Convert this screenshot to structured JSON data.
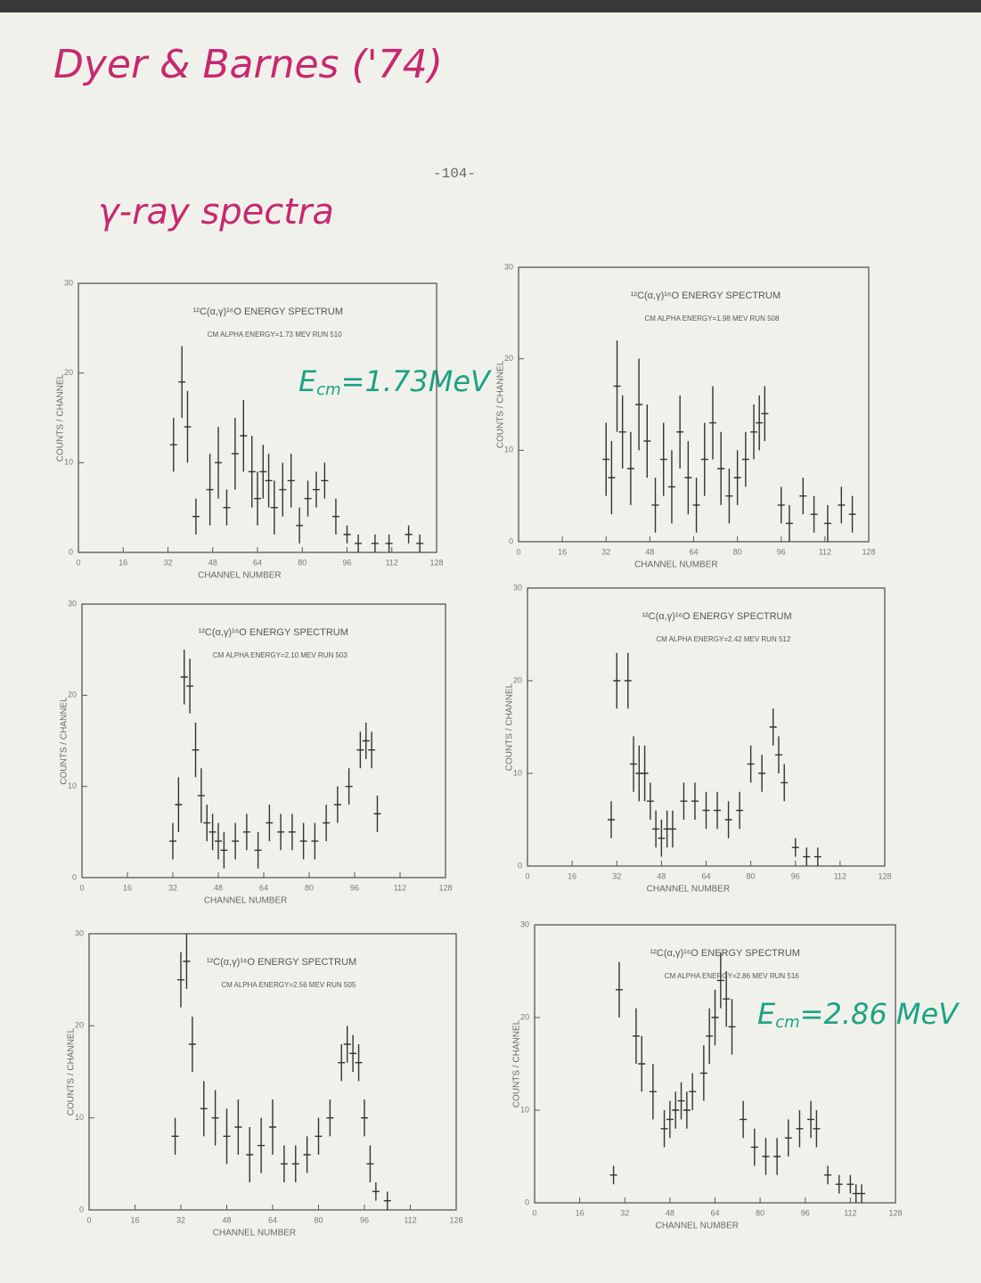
{
  "document": {
    "heading": "Dyer & Barnes ('74)",
    "page_number": "-104-",
    "subheading": "γ-ray spectra",
    "annotations": [
      {
        "symbol": "E",
        "subscript": "cm",
        "text": "=1.73MeV"
      },
      {
        "symbol": "E",
        "subscript": "cm",
        "text": "=2.86 MeV"
      }
    ]
  },
  "chart_data": [
    {
      "type": "scatter",
      "title": "¹²C(α,γ)¹⁶O   ENERGY SPECTRUM",
      "subtitle": "CM ALPHA ENERGY=1.73 MEV  RUN 510",
      "x_label": "CHANNEL NUMBER",
      "y_label": "COUNTS / CHANNEL",
      "x": [
        34,
        37,
        39,
        42,
        47,
        50,
        53,
        56,
        59,
        62,
        64,
        66,
        68,
        70,
        73,
        76,
        79,
        82,
        85,
        88,
        92,
        96,
        100,
        106,
        111,
        118,
        122
      ],
      "values": [
        12,
        19,
        14,
        4,
        7,
        10,
        5,
        11,
        13,
        9,
        6,
        9,
        8,
        5,
        7,
        8,
        3,
        6,
        7,
        8,
        4,
        2,
        1,
        1,
        1,
        2,
        1
      ],
      "errors": [
        3,
        4,
        4,
        2,
        4,
        4,
        2,
        4,
        4,
        4,
        3,
        3,
        3,
        3,
        3,
        3,
        2,
        2,
        2,
        2,
        2,
        1,
        1,
        1,
        1,
        1,
        1
      ],
      "xlim": [
        0,
        128
      ],
      "xticks": [
        0,
        16,
        32,
        48,
        64,
        80,
        96,
        112,
        128
      ],
      "ylim": [
        0,
        30
      ],
      "yticks": [
        0,
        10,
        20,
        30
      ],
      "color": "#333333"
    },
    {
      "type": "scatter",
      "title": "¹²C(α,γ)¹⁶O   ENERGY SPECTRUM",
      "subtitle": "CM ALPHA ENERGY=1.98 MEV  RUN 508",
      "x_label": "CHANNEL NUMBER",
      "y_label": "COUNTS / CHANNEL",
      "x": [
        32,
        34,
        36,
        38,
        41,
        44,
        47,
        50,
        53,
        56,
        59,
        62,
        65,
        68,
        71,
        74,
        77,
        80,
        83,
        86,
        88,
        90,
        96,
        99,
        104,
        108,
        113,
        118,
        122
      ],
      "values": [
        9,
        7,
        17,
        12,
        8,
        15,
        11,
        4,
        9,
        6,
        12,
        7,
        4,
        9,
        13,
        8,
        5,
        7,
        9,
        12,
        13,
        14,
        4,
        2,
        5,
        3,
        2,
        4,
        3
      ],
      "errors": [
        4,
        4,
        5,
        4,
        4,
        5,
        4,
        3,
        4,
        4,
        4,
        4,
        3,
        4,
        4,
        4,
        3,
        3,
        3,
        3,
        3,
        3,
        2,
        2,
        2,
        2,
        2,
        2,
        2
      ],
      "xlim": [
        0,
        128
      ],
      "xticks": [
        0,
        16,
        32,
        48,
        64,
        80,
        96,
        112,
        128
      ],
      "ylim": [
        0,
        30
      ],
      "yticks": [
        0,
        10,
        20,
        30
      ],
      "color": "#333333"
    },
    {
      "type": "scatter",
      "title": "¹²C(α,γ)¹⁶O   ENERGY SPECTRUM",
      "subtitle": "CM ALPHA ENERGY=2.10 MEV  RUN 503",
      "x_label": "CHANNEL NUMBER",
      "y_label": "COUNTS / CHANNEL",
      "x": [
        32,
        34,
        36,
        38,
        40,
        42,
        44,
        46,
        48,
        50,
        54,
        58,
        62,
        66,
        70,
        74,
        78,
        82,
        86,
        90,
        94,
        98,
        100,
        102,
        104
      ],
      "values": [
        4,
        8,
        22,
        21,
        14,
        9,
        6,
        5,
        4,
        3,
        4,
        5,
        3,
        6,
        5,
        5,
        4,
        4,
        6,
        8,
        10,
        14,
        15,
        14,
        7
      ],
      "errors": [
        2,
        3,
        3,
        3,
        3,
        3,
        2,
        2,
        2,
        2,
        2,
        2,
        2,
        2,
        2,
        2,
        2,
        2,
        2,
        2,
        2,
        2,
        2,
        2,
        2
      ],
      "xlim": [
        0,
        128
      ],
      "xticks": [
        0,
        16,
        32,
        48,
        64,
        80,
        96,
        112,
        128
      ],
      "ylim": [
        0,
        30
      ],
      "yticks": [
        0,
        10,
        20,
        30
      ],
      "color": "#333333"
    },
    {
      "type": "scatter",
      "title": "¹²C(α,γ)¹⁶O   ENERGY SPECTRUM",
      "subtitle": "CM ALPHA ENERGY=2.42 MEV  RUN 512",
      "x_label": "CHANNEL NUMBER",
      "y_label": "COUNTS / CHANNEL",
      "x": [
        30,
        32,
        36,
        38,
        40,
        42,
        44,
        46,
        48,
        50,
        52,
        56,
        60,
        64,
        68,
        72,
        76,
        80,
        84,
        88,
        90,
        92,
        96,
        100,
        104
      ],
      "values": [
        5,
        20,
        20,
        11,
        10,
        10,
        7,
        4,
        3,
        4,
        4,
        7,
        7,
        6,
        6,
        5,
        6,
        11,
        10,
        15,
        12,
        9,
        2,
        1,
        1
      ],
      "errors": [
        2,
        3,
        3,
        3,
        3,
        3,
        2,
        2,
        2,
        2,
        2,
        2,
        2,
        2,
        2,
        2,
        2,
        2,
        2,
        2,
        2,
        2,
        1,
        1,
        1
      ],
      "xlim": [
        0,
        128
      ],
      "xticks": [
        0,
        16,
        32,
        48,
        64,
        80,
        96,
        112,
        128
      ],
      "ylim": [
        0,
        30
      ],
      "yticks": [
        0,
        10,
        20,
        30
      ],
      "color": "#333333"
    },
    {
      "type": "scatter",
      "title": "¹²C(α,γ)¹⁶O   ENERGY SPECTRUM",
      "subtitle": "CM ALPHA ENERGY=2.56 MEV  RUN 505",
      "x_label": "CHANNEL NUMBER",
      "y_label": "COUNTS / CHANNEL",
      "x": [
        30,
        32,
        34,
        36,
        40,
        44,
        48,
        52,
        56,
        60,
        64,
        68,
        72,
        76,
        80,
        84,
        88,
        90,
        92,
        94,
        96,
        98,
        100,
        104
      ],
      "values": [
        8,
        25,
        27,
        18,
        11,
        10,
        8,
        9,
        6,
        7,
        9,
        5,
        5,
        6,
        8,
        10,
        16,
        18,
        17,
        16,
        10,
        5,
        2,
        1
      ],
      "errors": [
        2,
        3,
        3,
        3,
        3,
        3,
        3,
        3,
        3,
        3,
        3,
        2,
        2,
        2,
        2,
        2,
        2,
        2,
        2,
        2,
        2,
        2,
        1,
        1
      ],
      "xlim": [
        0,
        128
      ],
      "xticks": [
        0,
        16,
        32,
        48,
        64,
        80,
        96,
        112,
        128
      ],
      "ylim": [
        0,
        30
      ],
      "yticks": [
        0,
        10,
        20,
        30
      ],
      "color": "#333333"
    },
    {
      "type": "scatter",
      "title": "¹²C(α,γ)¹⁶O   ENERGY SPECTRUM",
      "subtitle": "CM ALPHA ENERGY=2.86 MEV  RUN 516",
      "x_label": "CHANNEL NUMBER",
      "y_label": "COUNTS / CHANNEL",
      "x": [
        28,
        30,
        36,
        38,
        42,
        46,
        48,
        50,
        52,
        54,
        56,
        60,
        62,
        64,
        66,
        68,
        70,
        74,
        78,
        82,
        86,
        90,
        94,
        98,
        100,
        104,
        108,
        112,
        114,
        116
      ],
      "values": [
        3,
        23,
        18,
        15,
        12,
        8,
        9,
        10,
        11,
        10,
        12,
        14,
        18,
        20,
        24,
        22,
        19,
        9,
        6,
        5,
        5,
        7,
        8,
        9,
        8,
        3,
        2,
        2,
        1,
        1
      ],
      "errors": [
        1,
        3,
        3,
        3,
        3,
        2,
        2,
        2,
        2,
        2,
        2,
        3,
        3,
        3,
        3,
        3,
        3,
        2,
        2,
        2,
        2,
        2,
        2,
        2,
        2,
        1,
        1,
        1,
        1,
        1
      ],
      "xlim": [
        0,
        128
      ],
      "xticks": [
        0,
        16,
        32,
        48,
        64,
        80,
        96,
        112,
        128
      ],
      "ylim": [
        0,
        30
      ],
      "yticks": [
        0,
        10,
        20,
        30
      ],
      "color": "#333333"
    }
  ]
}
